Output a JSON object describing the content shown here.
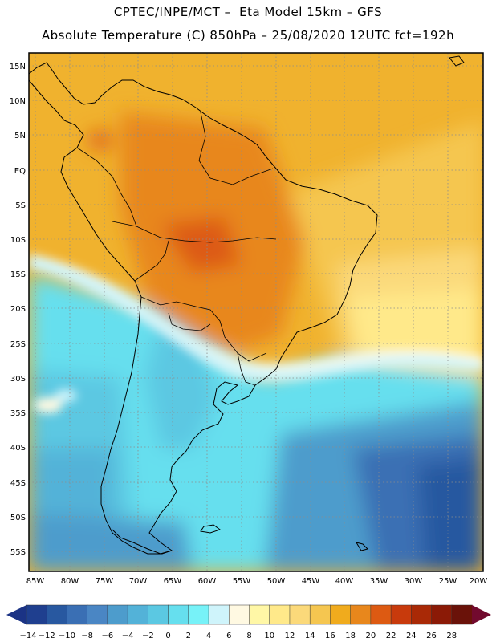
{
  "header": {
    "line1": "CPTEC/INPE/MCT –  Eta Model 15km – GFS",
    "line2": "Absolute Temperature (C) 850hPa – 25/08/2020 12UTC fct=192h"
  },
  "map": {
    "lat_labels": [
      "15N",
      "10N",
      "5N",
      "EQ",
      "5S",
      "10S",
      "15S",
      "20S",
      "25S",
      "30S",
      "35S",
      "40S",
      "45S",
      "50S",
      "55S"
    ],
    "lon_labels": [
      "85W",
      "80W",
      "75W",
      "70W",
      "65W",
      "60W",
      "55W",
      "50W",
      "45W",
      "40W",
      "35W",
      "30W",
      "25W",
      "20W"
    ]
  },
  "colorbar": {
    "labels": [
      "-14",
      "-12",
      "-10",
      "-8",
      "-6",
      "-4",
      "-2",
      "0",
      "2",
      "4",
      "6",
      "8",
      "10",
      "12",
      "14",
      "16",
      "18",
      "20",
      "22",
      "24",
      "26",
      "28"
    ],
    "colors": [
      "#1f3f8f",
      "#2858a0",
      "#3a6fb4",
      "#4a86c4",
      "#4d9ccc",
      "#53b2d8",
      "#5bc8e2",
      "#66dfee",
      "#77f2f8",
      "#cff4fb",
      "#fff9e2",
      "#fff7a6",
      "#ffe98a",
      "#fbd97a",
      "#f5c650",
      "#f0ab1d",
      "#e8871c",
      "#dd5a12",
      "#c83a0c",
      "#a92906",
      "#8b1a06",
      "#6a1209"
    ],
    "under_color": "#1b3385",
    "over_color": "#720a2e"
  }
}
